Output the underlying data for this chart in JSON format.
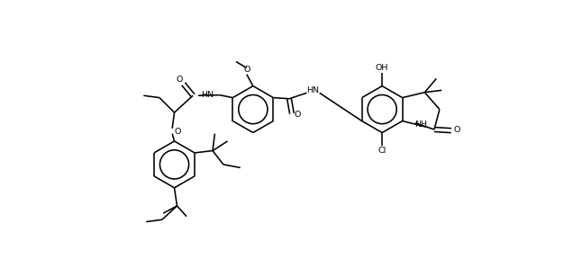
{
  "figsize": [
    6.36,
    3.08
  ],
  "dpi": 100,
  "lw": 1.15,
  "fs": 6.8,
  "xlim": [
    0,
    10.5
  ],
  "ylim": [
    0,
    5.2
  ]
}
